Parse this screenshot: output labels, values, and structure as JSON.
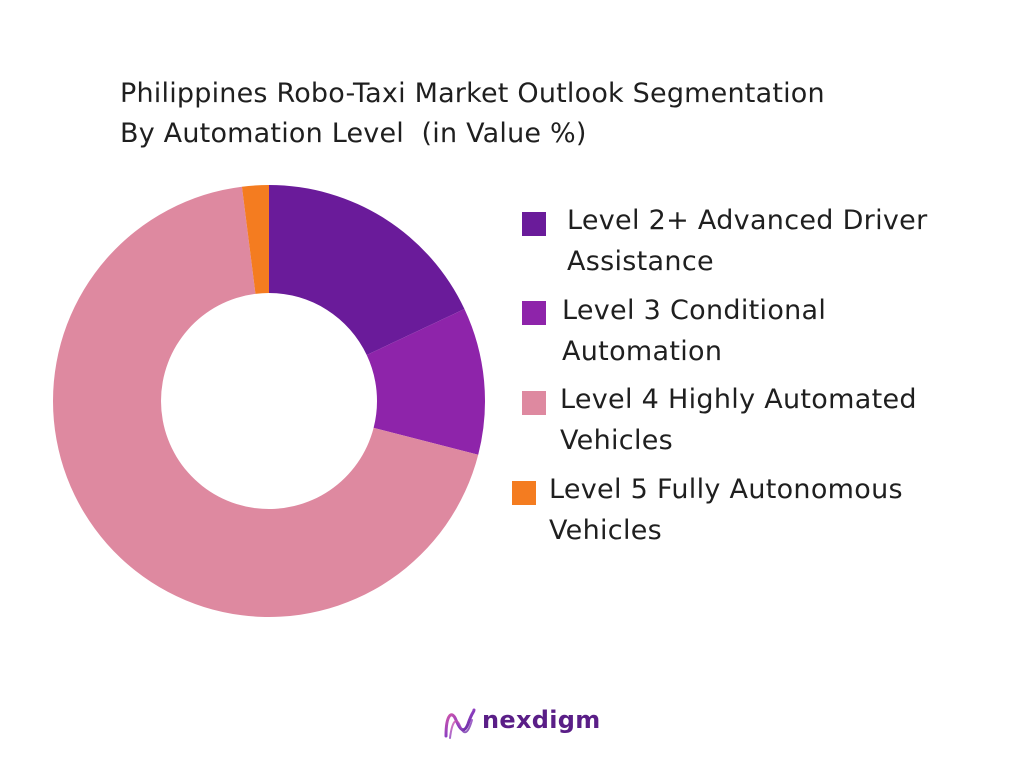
{
  "chart_data": {
    "type": "pie",
    "title": "Philippines Robo-Taxi Market Outlook Segmentation By Automation Level  (in Value %)",
    "title_lines": [
      "Philippines Robo-Taxi Market Outlook Segmentation",
      "By Automation Level  (in Value %)"
    ],
    "donut": true,
    "legend_position": "right",
    "slices": [
      {
        "label": "Level 2+ Advanced Driver Assistance",
        "label_lines": [
          "Level 2+ Advanced Driver",
          "Assistance"
        ],
        "value": 18,
        "color": "#6a1b9a"
      },
      {
        "label": "Level 3 Conditional Automation",
        "label_lines": [
          "Level 3 Conditional",
          "Automation"
        ],
        "value": 11,
        "color": "#8e24aa"
      },
      {
        "label": "Level 4 Highly Automated Vehicles",
        "label_lines": [
          "Level 4 Highly Automated",
          "Vehicles"
        ],
        "value": 69,
        "color": "#de89a0"
      },
      {
        "label": "Level 5 Fully Autonomous Vehicles",
        "label_lines": [
          "Level 5 Fully Autonomous",
          "Vehicles"
        ],
        "value": 2,
        "color": "#f47c20"
      }
    ]
  },
  "logo": {
    "text": "nexdigm",
    "color": "#5a1e87"
  }
}
